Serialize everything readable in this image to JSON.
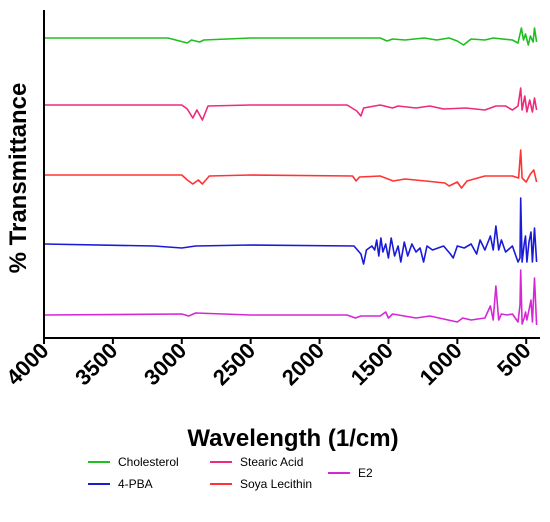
{
  "chart_data": {
    "type": "line",
    "xlabel": "Wavelength (1/cm)",
    "ylabel": "% Transmittance",
    "xlim": [
      4000,
      400
    ],
    "x_ticks": [
      4000,
      3500,
      3000,
      2500,
      2000,
      1500,
      1000,
      500
    ],
    "x_tick_labels": [
      "4000",
      "3500",
      "3000",
      "2500",
      "2000",
      "1500",
      "1000",
      "500"
    ],
    "y_ticks_shown": false,
    "grid": false,
    "legend_position": "bottom",
    "series": [
      {
        "name": "Cholesterol",
        "color": "#1fbf1f",
        "baseline": 38,
        "points": [
          [
            4000,
            38
          ],
          [
            3100,
            38
          ],
          [
            2960,
            43
          ],
          [
            2930,
            40
          ],
          [
            2870,
            42
          ],
          [
            2840,
            40
          ],
          [
            2500,
            38
          ],
          [
            2000,
            38
          ],
          [
            1560,
            38
          ],
          [
            1510,
            41
          ],
          [
            1470,
            39
          ],
          [
            1380,
            40
          ],
          [
            1240,
            38
          ],
          [
            1150,
            40
          ],
          [
            1060,
            38
          ],
          [
            1000,
            41
          ],
          [
            955,
            45
          ],
          [
            900,
            39
          ],
          [
            800,
            40
          ],
          [
            740,
            38
          ],
          [
            600,
            40
          ],
          [
            560,
            43
          ],
          [
            535,
            28
          ],
          [
            520,
            40
          ],
          [
            505,
            34
          ],
          [
            485,
            45
          ],
          [
            470,
            36
          ],
          [
            450,
            42
          ],
          [
            440,
            28
          ],
          [
            425,
            42
          ]
        ]
      },
      {
        "name": "Stearic Acid",
        "color": "#ee2a7b",
        "baseline": 105,
        "points": [
          [
            4000,
            105
          ],
          [
            3000,
            105
          ],
          [
            2960,
            109
          ],
          [
            2920,
            118
          ],
          [
            2890,
            110
          ],
          [
            2850,
            120
          ],
          [
            2810,
            106
          ],
          [
            2500,
            105
          ],
          [
            1800,
            105
          ],
          [
            1730,
            111
          ],
          [
            1700,
            116
          ],
          [
            1680,
            108
          ],
          [
            1560,
            105
          ],
          [
            1470,
            108
          ],
          [
            1430,
            106
          ],
          [
            1300,
            108
          ],
          [
            1200,
            106
          ],
          [
            1100,
            109
          ],
          [
            940,
            108
          ],
          [
            800,
            110
          ],
          [
            720,
            106
          ],
          [
            650,
            106
          ],
          [
            600,
            110
          ],
          [
            560,
            106
          ],
          [
            540,
            88
          ],
          [
            530,
            110
          ],
          [
            510,
            96
          ],
          [
            495,
            112
          ],
          [
            475,
            100
          ],
          [
            455,
            112
          ],
          [
            440,
            98
          ],
          [
            425,
            110
          ]
        ]
      },
      {
        "name": "Soya Lecithin",
        "color": "#ff3333",
        "baseline": 175,
        "points": [
          [
            4000,
            175
          ],
          [
            3000,
            175
          ],
          [
            2960,
            180
          ],
          [
            2920,
            184
          ],
          [
            2880,
            180
          ],
          [
            2850,
            184
          ],
          [
            2800,
            176
          ],
          [
            2500,
            175
          ],
          [
            1760,
            176
          ],
          [
            1735,
            181
          ],
          [
            1710,
            177
          ],
          [
            1560,
            176
          ],
          [
            1465,
            181
          ],
          [
            1380,
            179
          ],
          [
            1230,
            181
          ],
          [
            1090,
            183
          ],
          [
            1060,
            186
          ],
          [
            1000,
            182
          ],
          [
            970,
            188
          ],
          [
            930,
            181
          ],
          [
            800,
            176
          ],
          [
            600,
            176
          ],
          [
            555,
            178
          ],
          [
            540,
            150
          ],
          [
            530,
            178
          ],
          [
            500,
            182
          ],
          [
            470,
            174
          ],
          [
            445,
            170
          ],
          [
            425,
            182
          ]
        ]
      },
      {
        "name": "4-PBA",
        "color": "#1a1ad9",
        "baseline": 244,
        "points": [
          [
            4000,
            244
          ],
          [
            3200,
            246
          ],
          [
            3000,
            248
          ],
          [
            2900,
            246
          ],
          [
            2500,
            245
          ],
          [
            1750,
            246
          ],
          [
            1700,
            254
          ],
          [
            1680,
            264
          ],
          [
            1660,
            250
          ],
          [
            1620,
            246
          ],
          [
            1600,
            250
          ],
          [
            1585,
            240
          ],
          [
            1570,
            256
          ],
          [
            1555,
            238
          ],
          [
            1540,
            252
          ],
          [
            1520,
            244
          ],
          [
            1500,
            258
          ],
          [
            1480,
            238
          ],
          [
            1455,
            256
          ],
          [
            1430,
            246
          ],
          [
            1410,
            262
          ],
          [
            1385,
            242
          ],
          [
            1360,
            256
          ],
          [
            1330,
            244
          ],
          [
            1300,
            252
          ],
          [
            1270,
            248
          ],
          [
            1245,
            262
          ],
          [
            1220,
            246
          ],
          [
            1180,
            250
          ],
          [
            1100,
            246
          ],
          [
            1050,
            254
          ],
          [
            1030,
            258
          ],
          [
            1000,
            246
          ],
          [
            950,
            248
          ],
          [
            900,
            244
          ],
          [
            860,
            254
          ],
          [
            835,
            240
          ],
          [
            800,
            250
          ],
          [
            760,
            236
          ],
          [
            740,
            250
          ],
          [
            720,
            226
          ],
          [
            700,
            250
          ],
          [
            680,
            240
          ],
          [
            650,
            252
          ],
          [
            600,
            246
          ],
          [
            560,
            262
          ],
          [
            545,
            258
          ],
          [
            540,
            198
          ],
          [
            530,
            262
          ],
          [
            515,
            244
          ],
          [
            505,
            236
          ],
          [
            495,
            262
          ],
          [
            480,
            242
          ],
          [
            465,
            232
          ],
          [
            455,
            262
          ],
          [
            440,
            228
          ],
          [
            425,
            262
          ]
        ]
      },
      {
        "name": "E2",
        "color": "#d627d6",
        "baseline": 315,
        "points": [
          [
            4000,
            315
          ],
          [
            3000,
            314
          ],
          [
            2950,
            316
          ],
          [
            2900,
            313
          ],
          [
            2500,
            315
          ],
          [
            1800,
            315
          ],
          [
            1740,
            318
          ],
          [
            1700,
            316
          ],
          [
            1560,
            316
          ],
          [
            1520,
            312
          ],
          [
            1500,
            318
          ],
          [
            1470,
            314
          ],
          [
            1300,
            318
          ],
          [
            1200,
            316
          ],
          [
            1100,
            319
          ],
          [
            1000,
            322
          ],
          [
            960,
            318
          ],
          [
            900,
            320
          ],
          [
            800,
            318
          ],
          [
            760,
            306
          ],
          [
            740,
            320
          ],
          [
            720,
            286
          ],
          [
            700,
            320
          ],
          [
            680,
            314
          ],
          [
            640,
            315
          ],
          [
            600,
            314
          ],
          [
            560,
            322
          ],
          [
            545,
            305
          ],
          [
            540,
            270
          ],
          [
            530,
            324
          ],
          [
            515,
            318
          ],
          [
            505,
            312
          ],
          [
            495,
            320
          ],
          [
            480,
            310
          ],
          [
            465,
            300
          ],
          [
            455,
            322
          ],
          [
            440,
            278
          ],
          [
            425,
            325
          ]
        ]
      }
    ],
    "legend_layout": [
      {
        "name": "Cholesterol",
        "col": 0,
        "row": 0
      },
      {
        "name": "Stearic Acid",
        "col": 1,
        "row": 0
      },
      {
        "name": "E2",
        "col": 2,
        "row": 0.5
      },
      {
        "name": "4-PBA",
        "col": 0,
        "row": 1
      },
      {
        "name": "Soya Lecithin",
        "col": 1,
        "row": 1
      }
    ]
  }
}
